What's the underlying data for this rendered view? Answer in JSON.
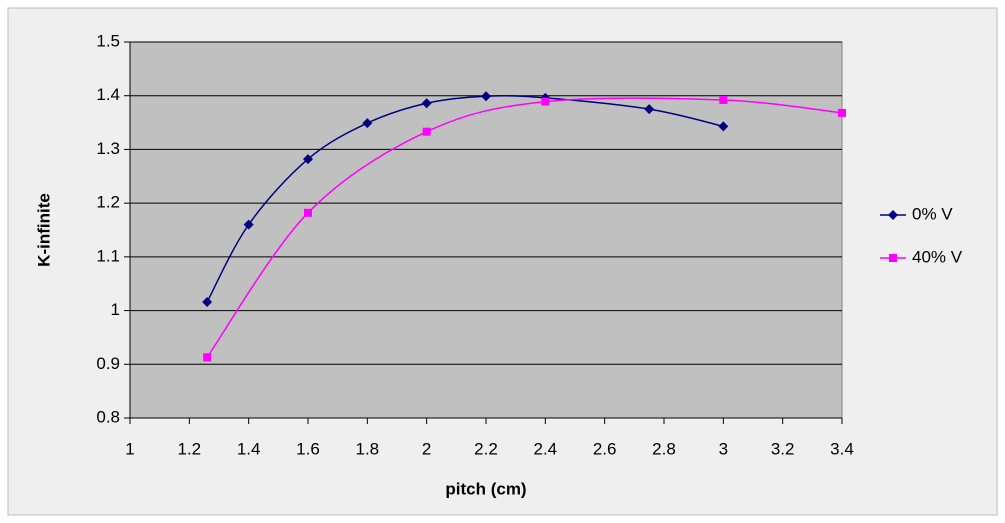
{
  "chart_data": {
    "type": "scatter",
    "smooth": true,
    "xlabel": "pitch (cm)",
    "ylabel": "K-infinite",
    "xlim": [
      1,
      3.4
    ],
    "xticks": [
      1,
      1.2,
      1.4,
      1.6,
      1.8,
      2,
      2.2,
      2.4,
      2.6,
      2.8,
      3,
      3.2,
      3.4
    ],
    "ylim": [
      0.8,
      1.5
    ],
    "yticks": [
      0.8,
      0.9,
      1,
      1.1,
      1.2,
      1.3,
      1.4,
      1.5
    ],
    "grid": true,
    "legend": "right",
    "series": [
      {
        "name": "0% V",
        "color": "#000080",
        "marker": "diamond",
        "x": [
          1.26,
          1.4,
          1.6,
          1.8,
          2.0,
          2.2,
          2.4,
          2.75,
          3.0
        ],
        "values": [
          1.016,
          1.16,
          1.282,
          1.349,
          1.386,
          1.399,
          1.396,
          1.375,
          1.343
        ]
      },
      {
        "name": "40% V",
        "color": "#ff00ff",
        "marker": "square",
        "x": [
          1.26,
          1.6,
          2.0,
          2.4,
          3.0,
          3.4
        ],
        "values": [
          0.913,
          1.182,
          1.333,
          1.389,
          1.392,
          1.368
        ]
      }
    ]
  }
}
